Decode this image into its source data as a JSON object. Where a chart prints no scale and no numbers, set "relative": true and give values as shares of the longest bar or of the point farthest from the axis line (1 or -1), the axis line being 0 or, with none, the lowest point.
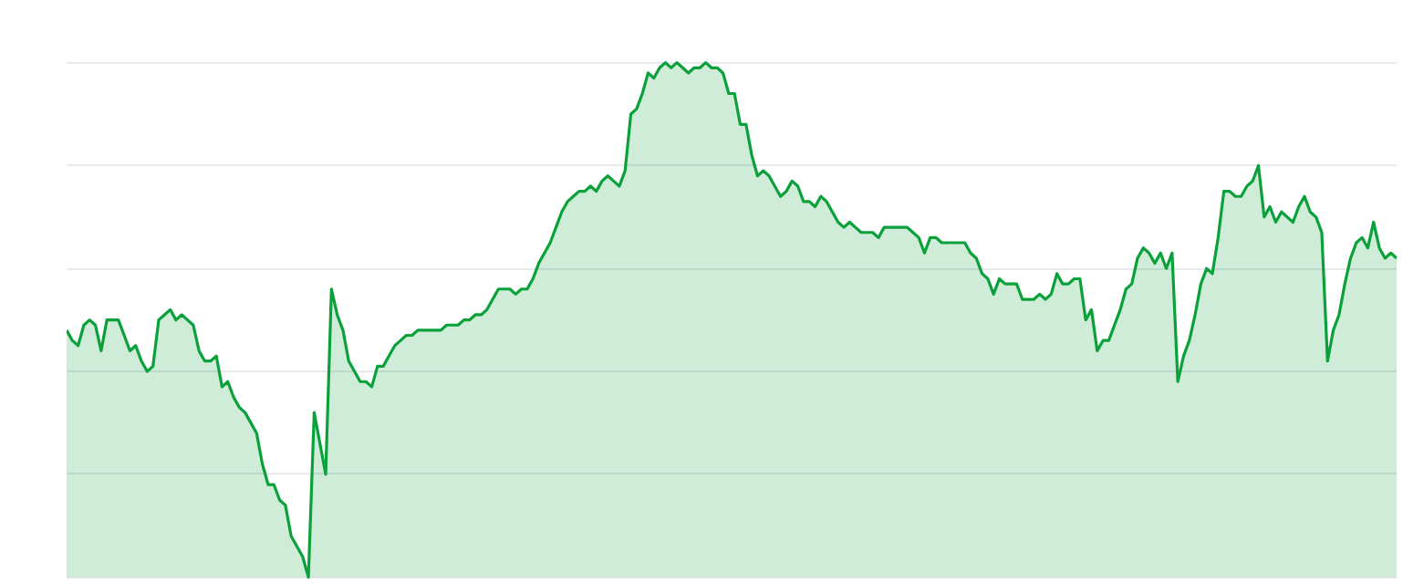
{
  "chart_data": {
    "type": "area",
    "relative": true,
    "grid": "y",
    "categories": [
      null,
      null,
      null,
      null,
      null,
      null,
      null,
      null,
      null,
      null,
      null,
      null,
      null,
      null,
      null,
      null,
      null,
      null,
      null,
      null,
      null,
      null,
      null,
      null,
      null,
      null,
      null,
      null,
      null,
      null,
      null,
      null,
      null,
      null,
      null,
      null,
      null,
      null,
      null,
      null,
      null,
      null,
      null,
      null,
      null,
      null,
      null,
      null,
      null,
      null,
      null,
      null,
      null,
      null,
      null,
      null,
      null,
      null,
      null,
      null,
      null,
      null,
      null,
      null,
      null,
      null,
      null,
      null,
      null,
      null,
      null,
      null,
      null,
      null,
      null,
      null,
      null,
      null,
      null,
      null,
      null,
      null,
      null,
      null,
      null,
      null,
      null,
      null,
      null,
      null,
      null,
      null,
      null,
      null,
      null,
      null,
      null,
      null,
      null,
      null,
      null,
      null,
      null,
      null,
      null,
      null,
      null,
      null,
      null,
      null,
      null,
      null,
      null,
      null,
      null,
      null,
      null,
      null,
      null,
      null,
      null,
      null,
      null,
      null,
      null,
      null,
      null,
      null,
      null,
      null,
      null,
      null,
      null,
      null,
      null,
      null,
      null,
      null,
      null,
      null,
      null,
      null,
      null,
      null,
      null,
      null,
      null,
      null,
      null,
      null,
      null,
      null,
      null,
      null,
      null,
      null,
      null,
      null,
      null,
      null,
      null,
      null,
      null,
      null,
      null,
      null,
      null,
      null,
      null,
      null,
      null,
      null,
      null,
      null,
      null,
      null,
      null,
      null,
      null,
      null,
      null,
      null,
      null,
      null,
      null,
      null,
      null,
      null,
      null,
      null,
      null,
      null,
      null,
      null,
      null,
      null,
      null,
      null,
      null,
      null,
      null,
      null,
      null,
      null,
      null,
      null,
      null,
      null,
      null,
      null,
      null,
      null,
      null,
      null,
      null,
      null,
      null,
      null,
      null,
      null,
      null,
      null,
      null,
      null,
      null,
      null,
      null,
      null,
      null,
      null,
      null,
      null
    ],
    "series": [
      {
        "color": "#0aa13b",
        "values": [
          0.48,
          0.46,
          0.45,
          0.49,
          0.5,
          0.49,
          0.44,
          0.5,
          0.5,
          0.5,
          0.47,
          0.44,
          0.45,
          0.42,
          0.4,
          0.41,
          0.5,
          0.51,
          0.52,
          0.5,
          0.51,
          0.5,
          0.49,
          0.44,
          0.42,
          0.42,
          0.43,
          0.37,
          0.38,
          0.35,
          0.33,
          0.32,
          0.3,
          0.28,
          0.22,
          0.18,
          0.18,
          0.15,
          0.14,
          0.08,
          0.06,
          0.04,
          0,
          0.32,
          0.26,
          0.2,
          0.56,
          0.51,
          0.48,
          0.42,
          0.4,
          0.38,
          0.38,
          0.37,
          0.41,
          0.41,
          0.43,
          0.45,
          0.46,
          0.47,
          0.47,
          0.48,
          0.48,
          0.48,
          0.48,
          0.48,
          0.49,
          0.49,
          0.49,
          0.5,
          0.5,
          0.51,
          0.51,
          0.52,
          0.54,
          0.56,
          0.56,
          0.56,
          0.55,
          0.56,
          0.56,
          0.58,
          0.61,
          0.63,
          0.65,
          0.68,
          0.71,
          0.73,
          0.74,
          0.75,
          0.75,
          0.76,
          0.75,
          0.77,
          0.78,
          0.77,
          0.76,
          0.79,
          0.9,
          0.91,
          0.94,
          0.98,
          0.97,
          0.99,
          1,
          0.99,
          1,
          0.99,
          0.98,
          0.99,
          0.99,
          1,
          0.99,
          0.99,
          0.98,
          0.94,
          0.94,
          0.88,
          0.88,
          0.82,
          0.78,
          0.79,
          0.78,
          0.76,
          0.74,
          0.75,
          0.77,
          0.76,
          0.73,
          0.73,
          0.72,
          0.74,
          0.73,
          0.71,
          0.69,
          0.68,
          0.69,
          0.68,
          0.67,
          0.67,
          0.67,
          0.66,
          0.68,
          0.68,
          0.68,
          0.68,
          0.68,
          0.67,
          0.66,
          0.63,
          0.66,
          0.66,
          0.65,
          0.65,
          0.65,
          0.65,
          0.65,
          0.63,
          0.62,
          0.59,
          0.58,
          0.55,
          0.58,
          0.57,
          0.57,
          0.57,
          0.54,
          0.54,
          0.54,
          0.55,
          0.54,
          0.55,
          0.59,
          0.57,
          0.57,
          0.58,
          0.58,
          0.5,
          0.52,
          0.44,
          0.46,
          0.46,
          0.49,
          0.52,
          0.56,
          0.57,
          0.62,
          0.64,
          0.63,
          0.61,
          0.63,
          0.6,
          0.63,
          0.38,
          0.43,
          0.46,
          0.51,
          0.57,
          0.6,
          0.59,
          0.66,
          0.75,
          0.75,
          0.74,
          0.74,
          0.76,
          0.77,
          0.8,
          0.7,
          0.72,
          0.69,
          0.71,
          0.7,
          0.69,
          0.72,
          0.74,
          0.71,
          0.7,
          0.67,
          0.42,
          0.48,
          0.51,
          0.57,
          0.62,
          0.65,
          0.66,
          0.64,
          0.69,
          0.64,
          0.62,
          0.63,
          0.62
        ]
      }
    ]
  }
}
